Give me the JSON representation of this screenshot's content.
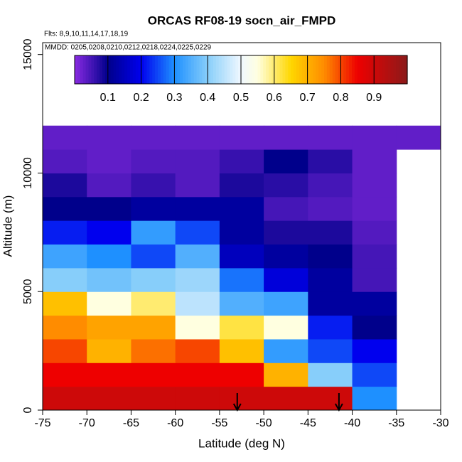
{
  "chart_data": {
    "type": "heatmap",
    "title": "ORCAS RF08-19 socn_air_FMPD",
    "annotations": [
      "Flts: 8,9,10,11,14,17,18,19",
      "MMDD: 0205,0208,0210,0212,0218,0224,0225,0229"
    ],
    "x_label": "Latitude (deg N)",
    "y_label": "Altitude (m)",
    "xlim": [
      -75,
      -30
    ],
    "ylim": [
      0,
      15500
    ],
    "xticks": [
      -75,
      -70,
      -65,
      -60,
      -55,
      -50,
      -45,
      -40,
      -35,
      -30
    ],
    "yticks": [
      0,
      5000,
      10000,
      15000
    ],
    "x_edges": [
      -75,
      -70,
      -65,
      -60,
      -55,
      -50,
      -45,
      -40,
      -35,
      -30
    ],
    "y_edges": [
      0,
      1000,
      2000,
      3000,
      4000,
      5000,
      6000,
      7000,
      8000,
      9000,
      10000,
      11000,
      12000
    ],
    "z": [
      [
        0.9,
        0.9,
        0.9,
        0.9,
        0.9,
        0.9,
        0.9,
        0.3,
        null
      ],
      [
        0.85,
        0.85,
        0.85,
        0.85,
        0.85,
        0.7,
        0.4,
        0.25,
        null
      ],
      [
        0.8,
        0.7,
        0.77,
        0.8,
        0.68,
        0.32,
        0.25,
        0.2,
        null
      ],
      [
        0.75,
        0.72,
        0.72,
        0.55,
        0.62,
        0.55,
        0.22,
        0.1,
        null
      ],
      [
        0.68,
        0.55,
        0.6,
        0.45,
        0.35,
        0.33,
        0.12,
        0.12,
        null
      ],
      [
        0.4,
        0.38,
        0.4,
        0.42,
        0.28,
        0.18,
        0.12,
        0.05,
        null
      ],
      [
        0.33,
        0.3,
        0.25,
        0.35,
        0.15,
        0.12,
        0.1,
        0.05,
        null
      ],
      [
        0.22,
        0.2,
        0.32,
        0.25,
        0.12,
        0.08,
        0.08,
        0.04,
        null
      ],
      [
        0.1,
        0.1,
        0.12,
        0.12,
        0.12,
        0.05,
        0.04,
        0.03,
        null
      ],
      [
        0.08,
        0.04,
        0.06,
        0.04,
        0.08,
        0.07,
        0.05,
        0.03,
        null
      ],
      [
        0.04,
        0.03,
        0.04,
        0.04,
        0.06,
        0.1,
        0.07,
        0.03,
        null
      ],
      [
        0.03,
        0.03,
        0.03,
        0.03,
        0.03,
        0.03,
        0.03,
        0.03,
        0.03
      ]
    ],
    "zlim": [
      0,
      1
    ],
    "colorbar_ticks": [
      0.1,
      0.2,
      0.3,
      0.4,
      0.5,
      0.6,
      0.7,
      0.8,
      0.9
    ],
    "colorscale": [
      [
        0,
        "#8a2be2"
      ],
      [
        0.1,
        "#00008b"
      ],
      [
        0.2,
        "#0000ee"
      ],
      [
        0.3,
        "#1e90ff"
      ],
      [
        0.4,
        "#87cefa"
      ],
      [
        0.5,
        "#f0f8ff"
      ],
      [
        0.55,
        "#ffffe0"
      ],
      [
        0.65,
        "#ffd700"
      ],
      [
        0.75,
        "#ff8c00"
      ],
      [
        0.85,
        "#ee0000"
      ],
      [
        1,
        "#8b1a1a"
      ]
    ],
    "arrows_x": [
      -53,
      -41.5
    ]
  }
}
